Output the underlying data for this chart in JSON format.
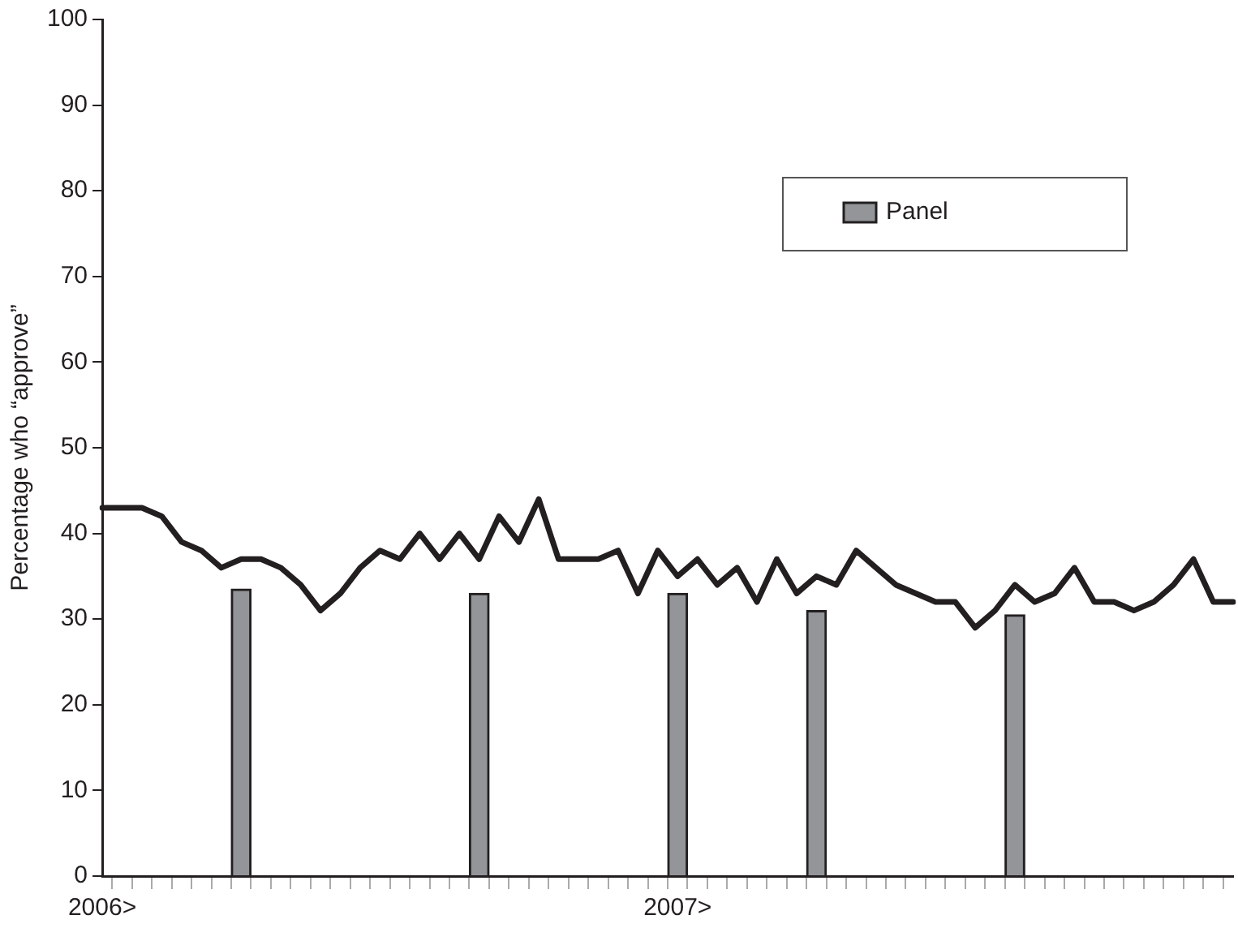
{
  "chart_data": {
    "type": "bar",
    "ylabel": "Percentage who “approve”",
    "categories": [
      "2006>",
      null,
      null,
      null,
      null,
      null,
      null,
      null,
      null,
      null,
      null,
      null,
      null,
      null,
      null,
      null,
      null,
      null,
      null,
      null,
      null,
      null,
      null,
      null,
      null,
      null,
      null,
      null,
      null,
      "2007>",
      null,
      null,
      null,
      null,
      null,
      null,
      null,
      null,
      null,
      null,
      null,
      null,
      null,
      null,
      null,
      null,
      null,
      null,
      null,
      null,
      null,
      null,
      null,
      null,
      null,
      null,
      null,
      null
    ],
    "series": [
      {
        "name": "Panel",
        "color": "#939598",
        "values": [
          null,
          null,
          null,
          null,
          null,
          null,
          null,
          33.5,
          null,
          null,
          null,
          null,
          null,
          null,
          null,
          null,
          null,
          null,
          null,
          33,
          null,
          null,
          null,
          null,
          null,
          null,
          null,
          null,
          null,
          33,
          null,
          null,
          null,
          null,
          null,
          null,
          31,
          null,
          null,
          null,
          null,
          null,
          null,
          null,
          null,
          null,
          30.5,
          null,
          null,
          null,
          null,
          null,
          null,
          null,
          null,
          null,
          null,
          null
        ]
      },
      {
        "type": "line",
        "color": "#231f20",
        "values": [
          43,
          43,
          43,
          42,
          39,
          38,
          36,
          37,
          37,
          36,
          34,
          31,
          33,
          36,
          38,
          37,
          40,
          37,
          40,
          37,
          42,
          39,
          44,
          37,
          37,
          37,
          38,
          33,
          38,
          35,
          37,
          34,
          36,
          32,
          37,
          33,
          35,
          34,
          38,
          36,
          34,
          33,
          32,
          32,
          29,
          31,
          34,
          32,
          33,
          36,
          32,
          32,
          31,
          32,
          34,
          37,
          32,
          32
        ]
      }
    ],
    "ylim": [
      0,
      100
    ],
    "yticks": [
      0,
      10,
      20,
      30,
      40,
      50,
      60,
      70,
      80,
      90,
      100
    ],
    "grid": false,
    "legend": "top right",
    "marker": "none"
  }
}
